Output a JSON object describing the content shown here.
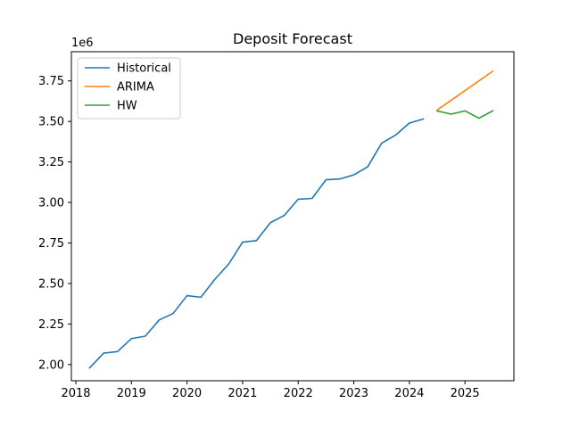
{
  "chart_data": {
    "type": "line",
    "title": "Deposit Forecast",
    "xlabel": "",
    "ylabel": "",
    "y_offset_label": "1e6",
    "xlim": [
      2017.92,
      2025.88
    ],
    "ylim": [
      1.9,
      3.93
    ],
    "x_ticks": [
      2018,
      2019,
      2020,
      2021,
      2022,
      2023,
      2024,
      2025
    ],
    "x_tick_labels": [
      "2018",
      "2019",
      "2020",
      "2021",
      "2022",
      "2023",
      "2024",
      "2025"
    ],
    "y_ticks": [
      2.0,
      2.25,
      2.5,
      2.75,
      3.0,
      3.25,
      3.5,
      3.75
    ],
    "y_tick_labels": [
      "2.00",
      "2.25",
      "2.50",
      "2.75",
      "3.00",
      "3.25",
      "3.50",
      "3.75"
    ],
    "grid": false,
    "legend_position": "top-left",
    "series": [
      {
        "name": "Historical",
        "color": "#1f77b4",
        "x": [
          2018.25,
          2018.5,
          2018.75,
          2019.0,
          2019.25,
          2019.5,
          2019.75,
          2020.0,
          2020.25,
          2020.5,
          2020.75,
          2021.0,
          2021.25,
          2021.5,
          2021.75,
          2022.0,
          2022.25,
          2022.5,
          2022.75,
          2023.0,
          2023.25,
          2023.5,
          2023.75,
          2024.0,
          2024.25
        ],
        "y": [
          1.98,
          2.07,
          2.08,
          2.16,
          2.175,
          2.275,
          2.315,
          2.425,
          2.415,
          2.525,
          2.62,
          2.755,
          2.765,
          2.875,
          2.92,
          3.02,
          3.025,
          3.14,
          3.145,
          3.17,
          3.22,
          3.365,
          3.415,
          3.49,
          3.515
        ]
      },
      {
        "name": "ARIMA",
        "color": "#ff7f0e",
        "x": [
          2024.5,
          2025.5
        ],
        "y": [
          3.57,
          3.81
        ]
      },
      {
        "name": "HW",
        "color": "#2ca02c",
        "x": [
          2024.5,
          2024.75,
          2025.0,
          2025.25,
          2025.5
        ],
        "y": [
          3.565,
          3.545,
          3.565,
          3.52,
          3.565
        ]
      }
    ]
  }
}
